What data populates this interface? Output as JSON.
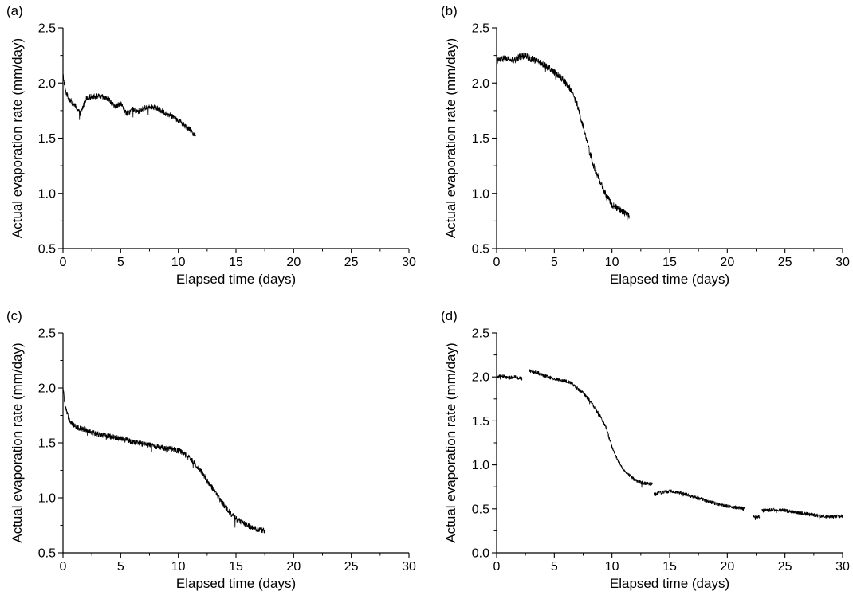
{
  "chart_data": [
    {
      "type": "line",
      "panel_label": "(a)",
      "xlabel": "Elapsed time (days)",
      "ylabel": "Actual evaporation rate (mm/day)",
      "xlim": [
        0,
        30
      ],
      "ylim": [
        0.5,
        2.5
      ],
      "x_ticks": [
        0,
        5,
        10,
        15,
        20,
        25,
        30
      ],
      "y_ticks": [
        0.5,
        1.0,
        1.5,
        2.0,
        2.5
      ],
      "grid": false,
      "line_color": "#000000",
      "noise": 0.025,
      "series": [
        {
          "x": [
            0,
            0.2,
            0.5,
            1,
            1.5,
            2,
            2.5,
            3,
            3.5,
            4,
            4.5,
            5,
            5.5,
            6,
            6.5,
            7,
            7.5,
            8,
            8.5,
            9,
            9.5,
            10,
            10.5,
            11,
            11.5
          ],
          "y": [
            2.08,
            1.93,
            1.86,
            1.8,
            1.72,
            1.86,
            1.88,
            1.88,
            1.87,
            1.85,
            1.78,
            1.82,
            1.72,
            1.76,
            1.74,
            1.77,
            1.79,
            1.78,
            1.75,
            1.72,
            1.7,
            1.66,
            1.62,
            1.58,
            1.52
          ]
        }
      ]
    },
    {
      "type": "line",
      "panel_label": "(b)",
      "xlabel": "Elapsed time (days)",
      "ylabel": "Actual evaporation rate (mm/day)",
      "xlim": [
        0,
        30
      ],
      "ylim": [
        0.5,
        2.5
      ],
      "x_ticks": [
        0,
        5,
        10,
        15,
        20,
        25,
        30
      ],
      "y_ticks": [
        0.5,
        1.0,
        1.5,
        2.0,
        2.5
      ],
      "grid": false,
      "line_color": "#000000",
      "noise": 0.03,
      "series": [
        {
          "x": [
            0,
            0.5,
            1,
            1.5,
            2,
            2.5,
            3,
            3.5,
            4,
            4.5,
            5,
            5.5,
            6,
            6.5,
            7,
            7.5,
            8,
            8.5,
            9,
            9.5,
            10,
            10.5,
            11,
            11.5
          ],
          "y": [
            2.2,
            2.22,
            2.22,
            2.2,
            2.24,
            2.25,
            2.22,
            2.2,
            2.17,
            2.14,
            2.1,
            2.06,
            2.0,
            1.93,
            1.8,
            1.6,
            1.4,
            1.22,
            1.1,
            0.98,
            0.9,
            0.86,
            0.83,
            0.8
          ]
        }
      ]
    },
    {
      "type": "line",
      "panel_label": "(c)",
      "xlabel": "Elapsed time (days)",
      "ylabel": "Actual evaporation rate (mm/day)",
      "xlim": [
        0,
        30
      ],
      "ylim": [
        0.5,
        2.5
      ],
      "x_ticks": [
        0,
        5,
        10,
        15,
        20,
        25,
        30
      ],
      "y_ticks": [
        0.5,
        1.0,
        1.5,
        2.0,
        2.5
      ],
      "grid": false,
      "line_color": "#000000",
      "noise": 0.025,
      "series": [
        {
          "x": [
            0,
            0.2,
            0.5,
            1,
            2,
            3,
            4,
            5,
            6,
            7,
            8,
            9,
            10,
            10.5,
            11,
            11.5,
            12,
            12.5,
            13,
            13.5,
            14,
            14.5,
            15,
            15.5,
            16,
            16.5,
            17,
            17.5
          ],
          "y": [
            2.0,
            1.82,
            1.72,
            1.65,
            1.62,
            1.58,
            1.56,
            1.54,
            1.51,
            1.49,
            1.47,
            1.45,
            1.43,
            1.4,
            1.36,
            1.3,
            1.24,
            1.16,
            1.08,
            1.0,
            0.93,
            0.86,
            0.81,
            0.78,
            0.75,
            0.73,
            0.71,
            0.7
          ]
        }
      ]
    },
    {
      "type": "line",
      "panel_label": "(d)",
      "xlabel": "Elapsed time (days)",
      "ylabel": "Actual evaporation rate (mm/day)",
      "xlim": [
        0,
        30
      ],
      "ylim": [
        0.0,
        2.5
      ],
      "x_ticks": [
        0,
        5,
        10,
        15,
        20,
        25,
        30
      ],
      "y_ticks": [
        0.0,
        0.5,
        1.0,
        1.5,
        2.0,
        2.5
      ],
      "grid": false,
      "line_color": "#000000",
      "noise": 0.02,
      "series": [
        {
          "x": [
            0,
            0.5,
            1,
            1.5,
            2.2
          ],
          "y": [
            2.0,
            2.01,
            1.99,
            2.0,
            1.98
          ]
        },
        {
          "x": [
            2.8,
            3.5,
            4,
            5,
            6,
            6.5,
            7,
            7.5,
            8,
            8.5,
            9,
            9.5,
            10,
            10.5,
            11,
            11.5,
            12,
            12.5,
            13,
            13.5
          ],
          "y": [
            2.07,
            2.05,
            2.02,
            1.98,
            1.95,
            1.93,
            1.87,
            1.82,
            1.74,
            1.65,
            1.55,
            1.42,
            1.2,
            1.05,
            0.95,
            0.88,
            0.83,
            0.8,
            0.79,
            0.78
          ]
        },
        {
          "x": [
            13.7,
            14,
            15,
            16,
            17,
            18,
            19,
            20,
            21,
            21.5
          ],
          "y": [
            0.66,
            0.68,
            0.7,
            0.68,
            0.64,
            0.6,
            0.56,
            0.53,
            0.51,
            0.5
          ]
        },
        {
          "x": [
            22.2,
            22.5,
            22.8
          ],
          "y": [
            0.42,
            0.4,
            0.41
          ]
        },
        {
          "x": [
            23,
            24,
            25,
            26,
            27,
            28,
            29,
            30
          ],
          "y": [
            0.48,
            0.49,
            0.48,
            0.46,
            0.44,
            0.42,
            0.41,
            0.42
          ]
        }
      ]
    }
  ]
}
